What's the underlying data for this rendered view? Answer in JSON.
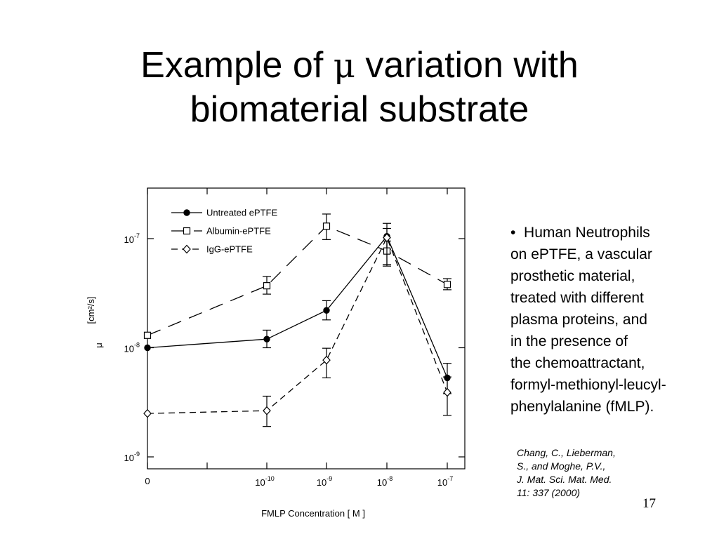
{
  "slide": {
    "title_part1": "Example of ",
    "title_symbol": "μ",
    "title_part2": " variation with",
    "title_line2": "biomaterial substrate",
    "bullet_marker": "•",
    "bullet_lines": [
      "Human Neutrophils",
      "on ePTFE, a vascular",
      "prosthetic material,",
      "treated with different",
      "plasma proteins, and",
      "in the presence of",
      "the chemoattractant,",
      "formyl-methionyl-leucyl-",
      "phenylalanine (fMLP)."
    ],
    "citation_lines": [
      "Chang, C., Lieberman,",
      "S., and Moghe, P.V.,",
      "J. Mat. Sci. Mat. Med.",
      "11: 337 (2000)"
    ],
    "page_number": "17"
  },
  "chart_data": {
    "type": "line",
    "xlabel": "FMLP Concentration [ M ]",
    "ylabel_symbol": "μ",
    "ylabel_units": "[cm²/s]",
    "y_scale": "log",
    "ylim": [
      1e-09,
      3e-07
    ],
    "x_ticks": [
      {
        "base": "0",
        "exp": ""
      },
      {
        "base": "10",
        "exp": "-10"
      },
      {
        "base": "10",
        "exp": "-9"
      },
      {
        "base": "10",
        "exp": "-8"
      },
      {
        "base": "10",
        "exp": "-7"
      }
    ],
    "y_ticks": [
      {
        "value": 1e-09,
        "base": "10",
        "exp": "-9"
      },
      {
        "value": 1e-08,
        "base": "10",
        "exp": "-8"
      },
      {
        "value": 1e-07,
        "base": "10",
        "exp": "-7"
      }
    ],
    "x": [
      "0",
      "1e-10",
      "1e-9",
      "1e-8",
      "1e-7"
    ],
    "legend_position": "top-left",
    "series": [
      {
        "name": "Untreated ePTFE",
        "marker": "filled-circle",
        "line": "solid",
        "values": [
          1e-08,
          1.2e-08,
          2.2e-08,
          1.05e-07,
          5.3e-09
        ],
        "err_low": [
          9e-09,
          1e-08,
          1.8e-08,
          8e-08,
          3.8e-09
        ],
        "err_high": [
          1.1e-08,
          1.45e-08,
          2.7e-08,
          1.38e-07,
          7.2e-09
        ]
      },
      {
        "name": "Albumin-ePTFE",
        "marker": "open-square",
        "line": "long-dash",
        "values": [
          1.3e-08,
          3.7e-08,
          1.3e-07,
          7.7e-08,
          3.8e-08
        ],
        "err_low": [
          1.2e-08,
          3.1e-08,
          9.8e-08,
          5.8e-08,
          3.4e-08
        ],
        "err_high": [
          1.42e-08,
          4.5e-08,
          1.68e-07,
          9.5e-08,
          4.3e-08
        ]
      },
      {
        "name": "IgG-ePTFE",
        "marker": "open-diamond",
        "line": "short-dash",
        "values": [
          2.5e-09,
          2.65e-09,
          7.7e-09,
          1.02e-07,
          3.9e-09
        ],
        "err_low": [
          2.4e-09,
          1.9e-09,
          5.3e-09,
          5.6e-08,
          2.4e-09
        ],
        "err_high": [
          2.6e-09,
          3.6e-09,
          9.9e-09,
          1.24e-07,
          5.4e-09
        ]
      }
    ]
  }
}
